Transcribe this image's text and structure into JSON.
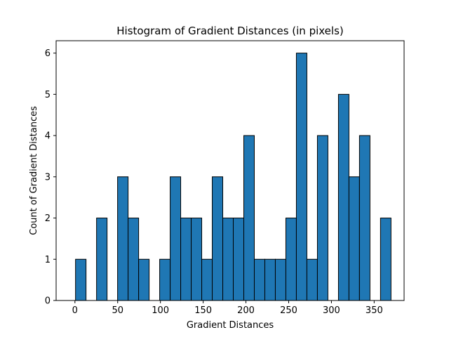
{
  "chart_data": {
    "type": "bar",
    "title": "Histogram of Gradient Distances (in pixels)",
    "xlabel": "Gradient Distances",
    "ylabel": "Count of Gradient Distances",
    "xlim": [
      -22,
      385
    ],
    "ylim": [
      0,
      6.3
    ],
    "grid": false,
    "bar_color": "#1f77b4",
    "edge_color": "#000000",
    "bin_edges": [
      0.7,
      13.0,
      25.3,
      37.6,
      49.9,
      62.2,
      74.5,
      86.8,
      99.1,
      111.4,
      123.7,
      136.0,
      148.3,
      160.6,
      172.9,
      185.2,
      197.5,
      209.8,
      222.1,
      234.4,
      246.7,
      259.0,
      271.3,
      283.6,
      295.9,
      308.2,
      320.5,
      332.8,
      345.1,
      357.4,
      369.7
    ],
    "counts": [
      1,
      0,
      2,
      0,
      3,
      2,
      1,
      0,
      1,
      3,
      2,
      2,
      1,
      3,
      2,
      2,
      4,
      1,
      1,
      1,
      2,
      6,
      1,
      4,
      0,
      5,
      3,
      4,
      0,
      2
    ],
    "xticks": [
      0,
      50,
      100,
      150,
      200,
      250,
      300,
      350
    ],
    "xtick_labels": [
      "0",
      "50",
      "100",
      "150",
      "200",
      "250",
      "300",
      "350"
    ],
    "yticks": [
      0,
      1,
      2,
      3,
      4,
      5,
      6
    ],
    "ytick_labels": [
      "0",
      "1",
      "2",
      "3",
      "4",
      "5",
      "6"
    ]
  }
}
